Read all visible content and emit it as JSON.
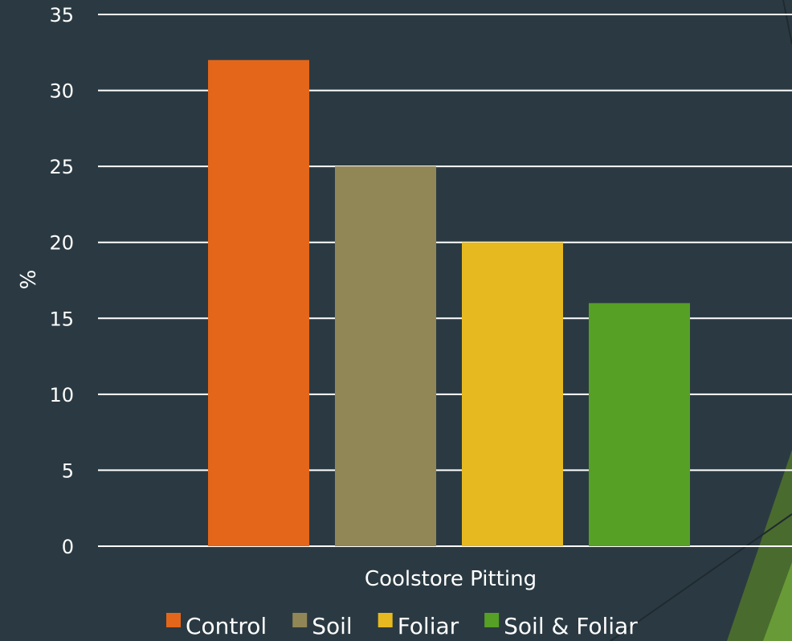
{
  "chart_data": {
    "type": "bar",
    "categories": [
      "Coolstore Pitting"
    ],
    "series": [
      {
        "name": "Control",
        "values": [
          32
        ],
        "color": "#e4661a"
      },
      {
        "name": "Soil",
        "values": [
          25
        ],
        "color": "#918756"
      },
      {
        "name": "Foliar",
        "values": [
          20
        ],
        "color": "#e6b920"
      },
      {
        "name": "Soil & Foliar",
        "values": [
          16
        ],
        "color": "#56a026"
      }
    ],
    "xlabel": "",
    "ylabel": "%",
    "ylim": [
      0,
      35
    ],
    "yticks": [
      0,
      5,
      10,
      15,
      20,
      25,
      30,
      35
    ],
    "grid": true,
    "legend_position": "bottom"
  },
  "colors": {
    "background": "#2b3a42",
    "gridline": "#ffffff",
    "text": "#ffffff",
    "decor_dark_green": "#4a6b2e",
    "decor_light_green": "#6fa83a"
  }
}
